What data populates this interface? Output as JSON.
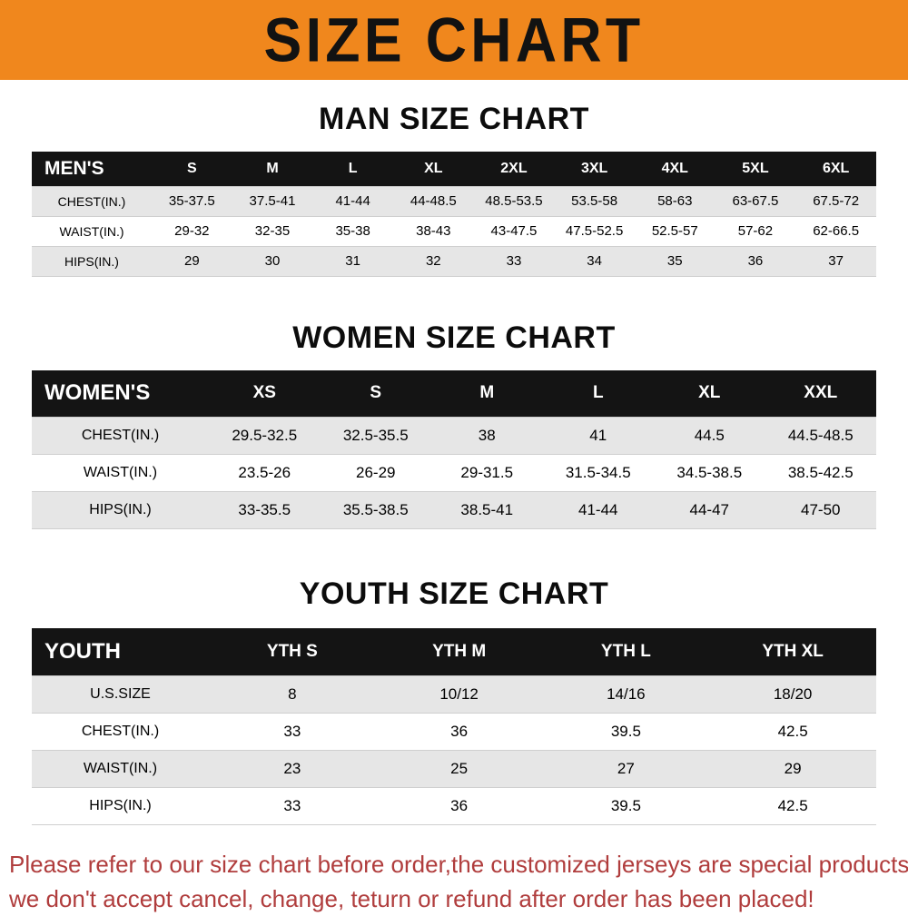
{
  "banner": {
    "title": "SIZE CHART"
  },
  "colors": {
    "banner_bg": "#f0871d",
    "banner_text": "#121212",
    "header_row_bg": "#141414",
    "header_row_text": "#ffffff",
    "stripe_bg": "#e6e6e6",
    "footer_text": "#b03d3d"
  },
  "chart_data": [
    {
      "type": "table",
      "title": "MAN SIZE CHART",
      "header": [
        "MEN'S",
        "S",
        "M",
        "L",
        "XL",
        "2XL",
        "3XL",
        "4XL",
        "5XL",
        "6XL"
      ],
      "rows": [
        [
          "CHEST(IN.)",
          "35-37.5",
          "37.5-41",
          "41-44",
          "44-48.5",
          "48.5-53.5",
          "53.5-58",
          "58-63",
          "63-67.5",
          "67.5-72"
        ],
        [
          "WAIST(IN.)",
          "29-32",
          "32-35",
          "35-38",
          "38-43",
          "43-47.5",
          "47.5-52.5",
          "52.5-57",
          "57-62",
          "62-66.5"
        ],
        [
          "HIPS(IN.)",
          "29",
          "30",
          "31",
          "32",
          "33",
          "34",
          "35",
          "36",
          "37"
        ]
      ]
    },
    {
      "type": "table",
      "title": "WOMEN SIZE CHART",
      "header": [
        "WOMEN'S",
        "XS",
        "S",
        "M",
        "L",
        "XL",
        "XXL"
      ],
      "rows": [
        [
          "CHEST(IN.)",
          "29.5-32.5",
          "32.5-35.5",
          "38",
          "41",
          "44.5",
          "44.5-48.5"
        ],
        [
          "WAIST(IN.)",
          "23.5-26",
          "26-29",
          "29-31.5",
          "31.5-34.5",
          "34.5-38.5",
          "38.5-42.5"
        ],
        [
          "HIPS(IN.)",
          "33-35.5",
          "35.5-38.5",
          "38.5-41",
          "41-44",
          "44-47",
          "47-50"
        ]
      ]
    },
    {
      "type": "table",
      "title": "YOUTH SIZE CHART",
      "header": [
        "YOUTH",
        "YTH S",
        "YTH M",
        "YTH L",
        "YTH XL"
      ],
      "rows": [
        [
          "U.S.SIZE",
          "8",
          "10/12",
          "14/16",
          "18/20"
        ],
        [
          "CHEST(IN.)",
          "33",
          "36",
          "39.5",
          "42.5"
        ],
        [
          "WAIST(IN.)",
          "23",
          "25",
          "27",
          "29"
        ],
        [
          "HIPS(IN.)",
          "33",
          "36",
          "39.5",
          "42.5"
        ]
      ]
    }
  ],
  "footer": {
    "line1": "Please refer to our size chart before order,the customized jerseys are special products,",
    "line2": "we don't accept cancel, change, teturn or refund after order has been placed!"
  }
}
